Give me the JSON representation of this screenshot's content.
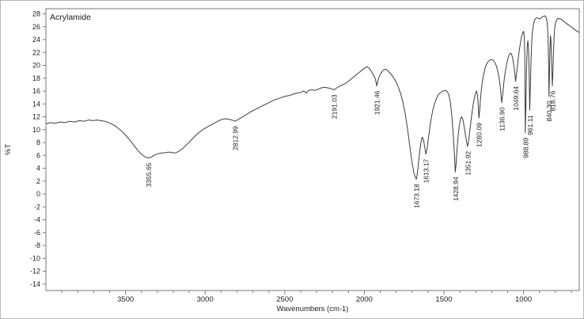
{
  "window": {
    "background": "#ffffff",
    "border_color": "#b5b5b5"
  },
  "chart_data": {
    "type": "line",
    "title": "Acrylamide",
    "xlabel": "Wavenumbers (cm-1)",
    "ylabel": "%T",
    "x_range": [
      4000,
      650
    ],
    "x_axis_reversed": true,
    "ylim": [
      -15,
      28.8
    ],
    "y_tick_min": -14,
    "y_tick_max": 28,
    "y_tick_step": 2,
    "x_major_ticks": [
      3500,
      3000,
      2500,
      2000,
      1500,
      1000
    ],
    "x_minor_tick_step": 100,
    "grid": false,
    "legend": "none",
    "line_color": "#3c3c3c",
    "frame_color": "#7a7a7a",
    "text_color": "#1c1c1c",
    "peaks": [
      {
        "label": "3355.65",
        "x": 3355.65,
        "y": 5.6
      },
      {
        "label": "2812.99",
        "x": 2812.99,
        "y": 11.3
      },
      {
        "label": "2191.03",
        "x": 2191.03,
        "y": 16.2
      },
      {
        "label": "1921.46",
        "x": 1921.46,
        "y": 16.8
      },
      {
        "label": "1673.18",
        "x": 1673.18,
        "y": 2.3
      },
      {
        "label": "1613.17",
        "x": 1613.17,
        "y": 6.2
      },
      {
        "label": "1428.94",
        "x": 1428.94,
        "y": 3.4
      },
      {
        "label": "1351.92",
        "x": 1351.92,
        "y": 7.4
      },
      {
        "label": "1280.09",
        "x": 1280.09,
        "y": 11.8
      },
      {
        "label": "1136.90",
        "x": 1136.9,
        "y": 14.2
      },
      {
        "label": "1049.64",
        "x": 1049.64,
        "y": 17.5
      },
      {
        "label": "988.89",
        "x": 988.89,
        "y": 9.5
      },
      {
        "label": "961.11",
        "x": 961.11,
        "y": 13.0
      },
      {
        "label": "840.30",
        "x": 840.3,
        "y": 15.2
      },
      {
        "label": "818.76",
        "x": 818.76,
        "y": 16.8
      }
    ],
    "points": [
      [
        4000,
        10.9
      ],
      [
        3970,
        11.1
      ],
      [
        3940,
        11.0
      ],
      [
        3910,
        11.2
      ],
      [
        3880,
        11.1
      ],
      [
        3850,
        11.3
      ],
      [
        3820,
        11.2
      ],
      [
        3790,
        11.4
      ],
      [
        3760,
        11.3
      ],
      [
        3730,
        11.5
      ],
      [
        3705,
        11.4
      ],
      [
        3680,
        11.5
      ],
      [
        3655,
        11.4
      ],
      [
        3630,
        11.3
      ],
      [
        3605,
        11.1
      ],
      [
        3580,
        10.8
      ],
      [
        3555,
        10.4
      ],
      [
        3530,
        9.9
      ],
      [
        3505,
        9.3
      ],
      [
        3480,
        8.6
      ],
      [
        3455,
        7.8
      ],
      [
        3430,
        7.0
      ],
      [
        3405,
        6.3
      ],
      [
        3385,
        5.9
      ],
      [
        3370,
        5.7
      ],
      [
        3355.65,
        5.6
      ],
      [
        3340,
        5.7
      ],
      [
        3322,
        6.0
      ],
      [
        3305,
        6.2
      ],
      [
        3288,
        6.3
      ],
      [
        3270,
        6.4
      ],
      [
        3252,
        6.4
      ],
      [
        3235,
        6.5
      ],
      [
        3218,
        6.5
      ],
      [
        3200,
        6.4
      ],
      [
        3185,
        6.4
      ],
      [
        3168,
        6.6
      ],
      [
        3150,
        6.9
      ],
      [
        3130,
        7.3
      ],
      [
        3110,
        7.8
      ],
      [
        3090,
        8.3
      ],
      [
        3068,
        8.9
      ],
      [
        3046,
        9.4
      ],
      [
        3024,
        9.8
      ],
      [
        3002,
        10.2
      ],
      [
        2980,
        10.5
      ],
      [
        2958,
        10.8
      ],
      [
        2936,
        11.1
      ],
      [
        2914,
        11.4
      ],
      [
        2892,
        11.6
      ],
      [
        2870,
        11.7
      ],
      [
        2850,
        11.6
      ],
      [
        2832,
        11.5
      ],
      [
        2812.99,
        11.3
      ],
      [
        2796,
        11.5
      ],
      [
        2778,
        11.8
      ],
      [
        2758,
        12.1
      ],
      [
        2736,
        12.4
      ],
      [
        2712,
        12.8
      ],
      [
        2688,
        13.1
      ],
      [
        2664,
        13.4
      ],
      [
        2640,
        13.7
      ],
      [
        2616,
        14.0
      ],
      [
        2592,
        14.3
      ],
      [
        2568,
        14.6
      ],
      [
        2544,
        14.8
      ],
      [
        2520,
        15.0
      ],
      [
        2496,
        15.2
      ],
      [
        2472,
        15.3
      ],
      [
        2448,
        15.5
      ],
      [
        2424,
        15.7
      ],
      [
        2400,
        15.8
      ],
      [
        2380,
        16.0
      ],
      [
        2365,
        15.7
      ],
      [
        2350,
        16.1
      ],
      [
        2330,
        16.2
      ],
      [
        2310,
        16.1
      ],
      [
        2290,
        16.3
      ],
      [
        2270,
        16.5
      ],
      [
        2250,
        16.6
      ],
      [
        2230,
        16.5
      ],
      [
        2212,
        16.4
      ],
      [
        2191.03,
        16.2
      ],
      [
        2172,
        16.5
      ],
      [
        2152,
        16.8
      ],
      [
        2132,
        17.0
      ],
      [
        2112,
        17.3
      ],
      [
        2092,
        17.7
      ],
      [
        2072,
        18.1
      ],
      [
        2052,
        18.5
      ],
      [
        2032,
        18.9
      ],
      [
        2012,
        19.3
      ],
      [
        1996,
        19.6
      ],
      [
        1982,
        19.8
      ],
      [
        1968,
        19.5
      ],
      [
        1954,
        19.0
      ],
      [
        1940,
        18.4
      ],
      [
        1930,
        17.8
      ],
      [
        1921.46,
        16.8
      ],
      [
        1912,
        17.9
      ],
      [
        1902,
        18.5
      ],
      [
        1890,
        19.0
      ],
      [
        1878,
        19.3
      ],
      [
        1866,
        19.4
      ],
      [
        1854,
        19.2
      ],
      [
        1842,
        18.9
      ],
      [
        1828,
        18.5
      ],
      [
        1814,
        18.0
      ],
      [
        1800,
        17.4
      ],
      [
        1786,
        16.6
      ],
      [
        1772,
        15.6
      ],
      [
        1758,
        14.3
      ],
      [
        1744,
        12.6
      ],
      [
        1730,
        10.4
      ],
      [
        1716,
        7.8
      ],
      [
        1702,
        5.2
      ],
      [
        1690,
        3.4
      ],
      [
        1680,
        2.6
      ],
      [
        1673.18,
        2.3
      ],
      [
        1667,
        3.2
      ],
      [
        1660,
        4.8
      ],
      [
        1652,
        6.6
      ],
      [
        1645,
        7.9
      ],
      [
        1638,
        8.8
      ],
      [
        1632,
        8.7
      ],
      [
        1626,
        8.1
      ],
      [
        1620,
        7.2
      ],
      [
        1613.17,
        6.2
      ],
      [
        1607,
        6.9
      ],
      [
        1600,
        8.2
      ],
      [
        1591,
        9.9
      ],
      [
        1581,
        11.6
      ],
      [
        1570,
        13.0
      ],
      [
        1558,
        14.1
      ],
      [
        1546,
        14.9
      ],
      [
        1533,
        15.5
      ],
      [
        1520,
        15.8
      ],
      [
        1507,
        16.0
      ],
      [
        1494,
        16.1
      ],
      [
        1482,
        16.0
      ],
      [
        1470,
        15.5
      ],
      [
        1459,
        14.2
      ],
      [
        1449,
        11.8
      ],
      [
        1440,
        8.6
      ],
      [
        1433,
        5.6
      ],
      [
        1428.94,
        3.4
      ],
      [
        1424,
        4.6
      ],
      [
        1418,
        6.8
      ],
      [
        1411,
        9.0
      ],
      [
        1404,
        10.6
      ],
      [
        1396,
        11.6
      ],
      [
        1389,
        12.0
      ],
      [
        1382,
        11.7
      ],
      [
        1374,
        10.7
      ],
      [
        1366,
        9.4
      ],
      [
        1358,
        8.1
      ],
      [
        1351.92,
        7.4
      ],
      [
        1346,
        8.1
      ],
      [
        1339,
        9.5
      ],
      [
        1331,
        11.2
      ],
      [
        1322,
        12.9
      ],
      [
        1313,
        14.4
      ],
      [
        1304,
        15.4
      ],
      [
        1296,
        16.0
      ],
      [
        1289,
        15.4
      ],
      [
        1284,
        13.8
      ],
      [
        1280.09,
        11.8
      ],
      [
        1276,
        12.9
      ],
      [
        1271,
        14.6
      ],
      [
        1265,
        16.2
      ],
      [
        1258,
        17.6
      ],
      [
        1250,
        18.7
      ],
      [
        1241,
        19.6
      ],
      [
        1232,
        20.2
      ],
      [
        1222,
        20.6
      ],
      [
        1212,
        20.8
      ],
      [
        1202,
        20.9
      ],
      [
        1192,
        20.8
      ],
      [
        1182,
        20.5
      ],
      [
        1172,
        20.0
      ],
      [
        1162,
        19.1
      ],
      [
        1152,
        17.8
      ],
      [
        1144,
        16.2
      ],
      [
        1136.9,
        14.2
      ],
      [
        1130,
        15.6
      ],
      [
        1123,
        17.4
      ],
      [
        1115,
        18.9
      ],
      [
        1107,
        20.1
      ],
      [
        1099,
        21.0
      ],
      [
        1091,
        21.6
      ],
      [
        1083,
        21.9
      ],
      [
        1076,
        21.8
      ],
      [
        1069,
        21.2
      ],
      [
        1062,
        20.2
      ],
      [
        1055,
        18.9
      ],
      [
        1049.64,
        17.5
      ],
      [
        1044,
        18.6
      ],
      [
        1037,
        20.2
      ],
      [
        1029,
        21.9
      ],
      [
        1021,
        23.3
      ],
      [
        1013,
        24.4
      ],
      [
        1006,
        25.0
      ],
      [
        1000,
        25.3
      ],
      [
        996,
        24.6
      ],
      [
        992,
        21.5
      ],
      [
        988.89,
        9.5
      ],
      [
        985,
        14.0
      ],
      [
        981,
        19.5
      ],
      [
        977,
        22.6
      ],
      [
        973,
        23.8
      ],
      [
        969,
        23.0
      ],
      [
        965,
        19.5
      ],
      [
        961.11,
        13.0
      ],
      [
        957,
        16.5
      ],
      [
        953,
        20.5
      ],
      [
        949,
        23.3
      ],
      [
        944,
        25.2
      ],
      [
        938,
        26.3
      ],
      [
        931,
        27.0
      ],
      [
        924,
        27.3
      ],
      [
        916,
        27.4
      ],
      [
        908,
        27.3
      ],
      [
        900,
        27.2
      ],
      [
        892,
        27.3
      ],
      [
        884,
        27.5
      ],
      [
        876,
        27.6
      ],
      [
        868,
        27.7
      ],
      [
        861,
        27.6
      ],
      [
        855,
        27.2
      ],
      [
        850,
        26.2
      ],
      [
        846,
        24.2
      ],
      [
        843,
        20.8
      ],
      [
        840.3,
        15.2
      ],
      [
        837,
        18.8
      ],
      [
        834,
        22.4
      ],
      [
        831,
        24.6
      ],
      [
        828,
        24.0
      ],
      [
        825,
        21.8
      ],
      [
        822,
        19.0
      ],
      [
        818.76,
        16.8
      ],
      [
        815,
        19.2
      ],
      [
        812,
        22.0
      ],
      [
        808,
        24.4
      ],
      [
        804,
        25.8
      ],
      [
        799,
        26.6
      ],
      [
        793,
        27.0
      ],
      [
        786,
        27.2
      ],
      [
        778,
        27.3
      ],
      [
        769,
        27.2
      ],
      [
        760,
        27.1
      ],
      [
        750,
        26.9
      ],
      [
        740,
        26.7
      ],
      [
        730,
        26.5
      ],
      [
        719,
        26.3
      ],
      [
        708,
        26.1
      ],
      [
        697,
        25.9
      ],
      [
        686,
        25.7
      ],
      [
        675,
        25.5
      ],
      [
        663,
        25.3
      ],
      [
        650,
        25.1
      ]
    ]
  }
}
